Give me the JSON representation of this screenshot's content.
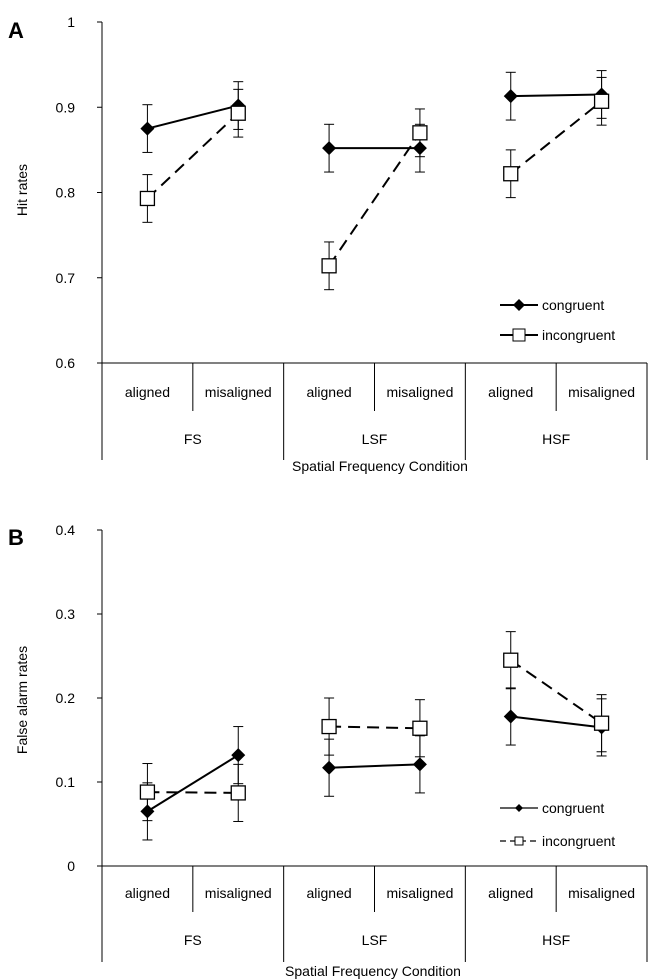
{
  "chart_data": [
    {
      "type": "line",
      "panel_label": "A",
      "ylabel": "Hit rates",
      "xlabel": "Spatial Frequency Condition",
      "ylim": [
        0.6,
        1
      ],
      "ytick_labels": [
        "0.6",
        "0.7",
        "0.8",
        "0.9",
        "1"
      ],
      "categories": [
        "aligned",
        "misaligned",
        "aligned",
        "misaligned",
        "aligned",
        "misaligned"
      ],
      "groups": [
        "FS",
        "LSF",
        "HSF"
      ],
      "legend_position": "bottom-right",
      "series": [
        {
          "name": "congruent",
          "marker": "filled-diamond",
          "line": "solid",
          "values": [
            0.875,
            0.902,
            0.852,
            0.852,
            0.913,
            0.915
          ],
          "errors": [
            0.028,
            0.028,
            0.028,
            0.028,
            0.028,
            0.028
          ]
        },
        {
          "name": "incongruent",
          "marker": "open-square",
          "line": "dashed",
          "values": [
            0.793,
            0.893,
            0.714,
            0.87,
            0.822,
            0.907
          ],
          "errors": [
            0.028,
            0.028,
            0.028,
            0.028,
            0.028,
            0.028
          ]
        }
      ]
    },
    {
      "type": "line",
      "panel_label": "B",
      "ylabel": "False alarm rates",
      "xlabel": "Spatial Frequency Condition",
      "ylim": [
        0,
        0.4
      ],
      "ytick_labels": [
        "0",
        "0.1",
        "0.2",
        "0.3",
        "0.4"
      ],
      "categories": [
        "aligned",
        "misaligned",
        "aligned",
        "misaligned",
        "aligned",
        "misaligned"
      ],
      "groups": [
        "FS",
        "LSF",
        "HSF"
      ],
      "legend_position": "bottom-right",
      "series": [
        {
          "name": "congruent",
          "marker": "filled-diamond",
          "line": "solid",
          "values": [
            0.065,
            0.132,
            0.117,
            0.121,
            0.178,
            0.165
          ],
          "errors": [
            0.034,
            0.034,
            0.034,
            0.034,
            0.034,
            0.034
          ]
        },
        {
          "name": "incongruent",
          "marker": "open-square",
          "line": "dashed",
          "values": [
            0.088,
            0.087,
            0.166,
            0.164,
            0.245,
            0.17
          ],
          "errors": [
            0.034,
            0.034,
            0.034,
            0.034,
            0.034,
            0.034
          ]
        }
      ]
    }
  ]
}
